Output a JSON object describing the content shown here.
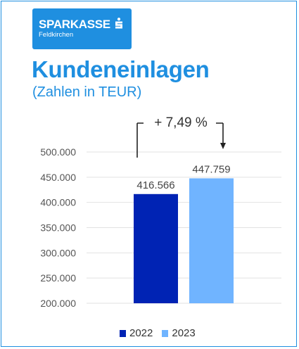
{
  "brand": {
    "name": "SPARKASSE",
    "location": "Feldkirchen",
    "logo_icon": "sparkasse-s-icon"
  },
  "header": {
    "title": "Kundeneinlagen",
    "subtitle": "(Zahlen in TEUR)"
  },
  "colors": {
    "accent": "#1f8fe0",
    "series_2022": "#0023b4",
    "series_2023": "#70b4ff",
    "grid": "#e2e2e2"
  },
  "chart_data": {
    "type": "bar",
    "categories": [
      "2022",
      "2023"
    ],
    "values": [
      416566,
      447759
    ],
    "value_labels": [
      "416.566",
      "447.759"
    ],
    "ylim": [
      200000,
      500000
    ],
    "yticks": [
      500000,
      450000,
      400000,
      350000,
      300000,
      250000,
      200000
    ],
    "ytick_labels": [
      "500.000",
      "450.000",
      "400.000",
      "350.000",
      "300.000",
      "250.000",
      "200.000"
    ],
    "grid": true,
    "legend": {
      "position": "bottom",
      "entries": [
        "2022",
        "2023"
      ]
    },
    "annotation": "+ 7,49 %"
  }
}
